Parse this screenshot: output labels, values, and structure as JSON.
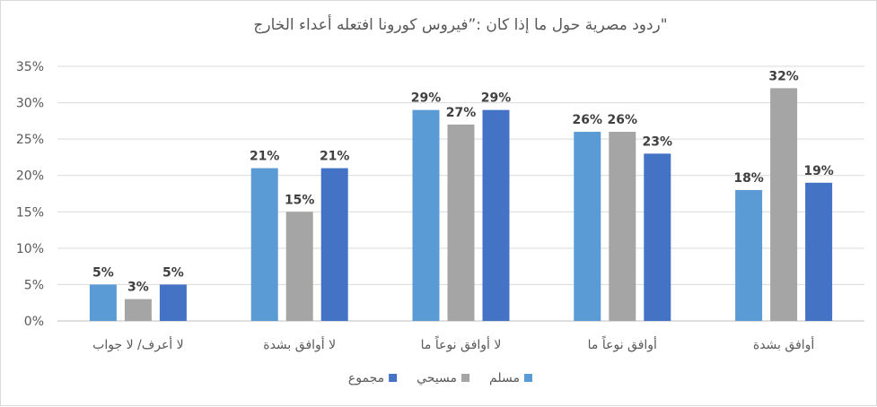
{
  "chart_data": {
    "type": "bar",
    "title": "ردود مصرية حول ما إذا كان :”فيروس كورونا افتعله أعداء الخارج\"",
    "categories": [
      "لا أعرف/ لا جواب",
      "لا أوافق بشدة",
      "لا أوافق نوعاً ما",
      "أوافق نوعاً ما",
      "أوافق بشدة"
    ],
    "series": [
      {
        "name": "مسلم",
        "values": [
          5,
          21,
          29,
          26,
          18
        ],
        "labels": [
          "5%",
          "21%",
          "29%",
          "26%",
          "18%"
        ],
        "color": "#5b9bd5"
      },
      {
        "name": "مسيحي",
        "values": [
          3,
          15,
          27,
          26,
          32
        ],
        "labels": [
          "3%",
          "15%",
          "27%",
          "26%",
          "32%"
        ],
        "color": "#a5a5a5"
      },
      {
        "name": "مجموع",
        "values": [
          5,
          21,
          29,
          23,
          19
        ],
        "labels": [
          "5%",
          "21%",
          "29%",
          "23%",
          "19%"
        ],
        "color": "#4472c4"
      }
    ],
    "ylim": [
      0,
      35
    ],
    "yticks": [
      "0%",
      "5%",
      "10%",
      "15%",
      "20%",
      "25%",
      "30%",
      "35%"
    ],
    "grid": true,
    "legend_position": "bottom"
  }
}
